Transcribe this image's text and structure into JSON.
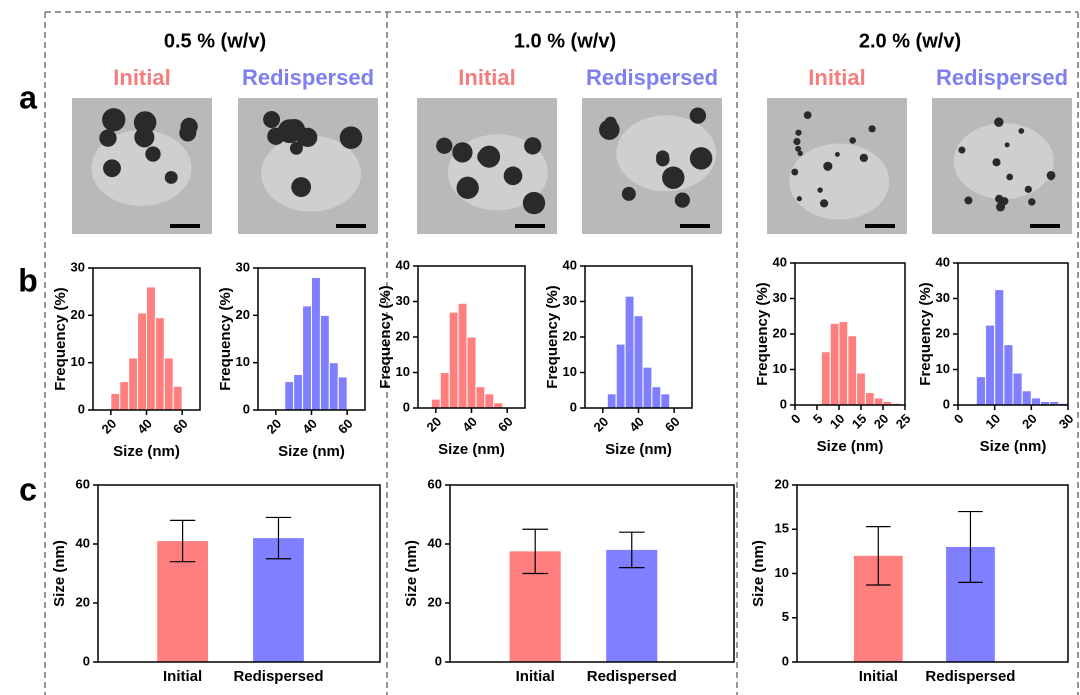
{
  "panel_labels": [
    "a",
    "b",
    "c"
  ],
  "columns": [
    {
      "title": "0.5 % (w/v)",
      "image_labels": [
        "Initial",
        "Redispersed"
      ]
    },
    {
      "title": "1.0 % (w/v)",
      "image_labels": [
        "Initial",
        "Redispersed"
      ]
    },
    {
      "title": "2.0 % (w/v)",
      "image_labels": [
        "Initial",
        "Redispersed"
      ]
    }
  ],
  "chart_data": [
    {
      "type": "histogram",
      "xlabel": "Size (nm)",
      "ylabel": "Frequency (%)",
      "color": "#ff7f7f",
      "bins": [
        20,
        25,
        30,
        35,
        40,
        45,
        50,
        55,
        60
      ],
      "values": [
        3.5,
        6,
        11,
        20.5,
        26,
        19.5,
        11,
        5
      ],
      "xlim": [
        10,
        70
      ],
      "xticks": [
        20,
        40,
        60
      ],
      "ylim": [
        0,
        30
      ],
      "yticks": [
        0,
        10,
        20,
        30
      ]
    },
    {
      "type": "histogram",
      "xlabel": "Size (nm)",
      "ylabel": "Frequency (%)",
      "color": "#7f7fff",
      "bins": [
        25,
        30,
        35,
        40,
        45,
        50,
        55,
        60
      ],
      "values": [
        6,
        7.5,
        22,
        28,
        20,
        10,
        7
      ],
      "xlim": [
        10,
        70
      ],
      "xticks": [
        20,
        40,
        60
      ],
      "ylim": [
        0,
        30
      ],
      "yticks": [
        0,
        10,
        20,
        30
      ]
    },
    {
      "type": "bar",
      "ylabel": "Size (nm)",
      "categories": [
        "Initial",
        "Redispersed"
      ],
      "colors": [
        "#ff7f7f",
        "#7f7fff"
      ],
      "values": [
        41,
        42
      ],
      "errors": [
        7,
        7
      ],
      "ylim": [
        0,
        60
      ],
      "yticks": [
        0,
        20,
        40,
        60
      ]
    },
    {
      "type": "histogram",
      "xlabel": "Size (nm)",
      "ylabel": "Frequency (%)",
      "color": "#ff7f7f",
      "bins": [
        17.5,
        22.5,
        27.5,
        32.5,
        37.5,
        42.5,
        47.5,
        52.5,
        57.5
      ],
      "values": [
        2.5,
        10,
        27,
        29.5,
        20,
        6,
        4,
        1.5
      ],
      "xlim": [
        10,
        70
      ],
      "xticks": [
        20,
        40,
        60
      ],
      "ylim": [
        0,
        40
      ],
      "yticks": [
        0,
        10,
        20,
        30,
        40
      ]
    },
    {
      "type": "histogram",
      "xlabel": "Size (nm)",
      "ylabel": "Frequency (%)",
      "color": "#7f7fff",
      "bins": [
        22.5,
        27.5,
        32.5,
        37.5,
        42.5,
        47.5,
        52.5,
        57.5
      ],
      "values": [
        4,
        18,
        31.5,
        26,
        11.5,
        6,
        4
      ],
      "xlim": [
        10,
        70
      ],
      "xticks": [
        20,
        40,
        60
      ],
      "ylim": [
        0,
        40
      ],
      "yticks": [
        0,
        10,
        20,
        30,
        40
      ]
    },
    {
      "type": "bar",
      "ylabel": "Size (nm)",
      "categories": [
        "Initial",
        "Redispersed"
      ],
      "colors": [
        "#ff7f7f",
        "#7f7fff"
      ],
      "values": [
        37.5,
        38
      ],
      "errors": [
        7.5,
        6
      ],
      "ylim": [
        0,
        60
      ],
      "yticks": [
        0,
        20,
        40,
        60
      ]
    },
    {
      "type": "histogram",
      "xlabel": "Size (nm)",
      "ylabel": "Frequency (%)",
      "color": "#ff7f7f",
      "bins": [
        6,
        8,
        10,
        12,
        14,
        16,
        18,
        20,
        22,
        24
      ],
      "values": [
        15,
        23,
        23.5,
        19.5,
        9,
        3.5,
        2,
        1,
        0.5
      ],
      "xlim": [
        0,
        25
      ],
      "xticks": [
        0,
        5,
        10,
        15,
        20,
        25
      ],
      "ylim": [
        0,
        40
      ],
      "yticks": [
        0,
        10,
        20,
        30,
        40
      ]
    },
    {
      "type": "histogram",
      "xlabel": "Size (nm)",
      "ylabel": "Frequency (%)",
      "color": "#7f7fff",
      "bins": [
        5,
        7.5,
        10,
        12.5,
        15,
        17.5,
        20,
        22.5,
        25,
        27.5,
        30
      ],
      "values": [
        8,
        22.5,
        32.5,
        17,
        9,
        4,
        2,
        1,
        1,
        0.5
      ],
      "xlim": [
        0,
        30
      ],
      "xticks": [
        0,
        10,
        20,
        30
      ],
      "ylim": [
        0,
        40
      ],
      "yticks": [
        0,
        10,
        20,
        30,
        40
      ]
    },
    {
      "type": "bar",
      "ylabel": "Size (nm)",
      "categories": [
        "Initial",
        "Redispersed"
      ],
      "colors": [
        "#ff7f7f",
        "#7f7fff"
      ],
      "values": [
        12,
        13
      ],
      "errors": [
        3.3,
        4
      ],
      "ylim": [
        0,
        20
      ],
      "yticks": [
        0,
        5,
        10,
        15,
        20
      ]
    }
  ]
}
